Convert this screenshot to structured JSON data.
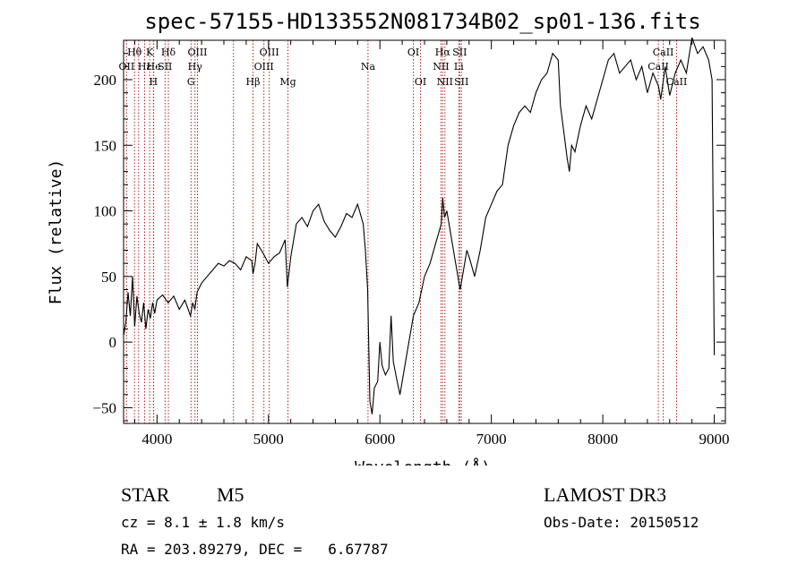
{
  "chart_data": {
    "type": "line",
    "title": "spec-57155-HD133552N081734B02_sp01-136.fits",
    "xlabel": "Wavelength (Å)",
    "ylabel": "Flux (relative)",
    "xlim": [
      3700,
      9100
    ],
    "ylim": [
      -62,
      230
    ],
    "x_ticks": [
      4000,
      5000,
      6000,
      7000,
      8000,
      9000
    ],
    "y_ticks": [
      -50,
      0,
      50,
      100,
      150,
      200
    ],
    "grid": false,
    "series": [
      {
        "x": [
          3700,
          3720,
          3740,
          3760,
          3780,
          3800,
          3820,
          3840,
          3860,
          3880,
          3900,
          3920,
          3940,
          3960,
          3980,
          4000,
          4050,
          4100,
          4150,
          4200,
          4250,
          4300,
          4320,
          4340,
          4360,
          4400,
          4450,
          4500,
          4550,
          4600,
          4650,
          4700,
          4750,
          4800,
          4850,
          4861,
          4880,
          4900,
          4950,
          5000,
          5050,
          5100,
          5150,
          5170,
          5200,
          5250,
          5300,
          5350,
          5400,
          5450,
          5500,
          5550,
          5600,
          5650,
          5700,
          5750,
          5800,
          5850,
          5870,
          5890,
          5910,
          5930,
          5950,
          5980,
          6000,
          6020,
          6050,
          6080,
          6100,
          6120,
          6150,
          6180,
          6200,
          6250,
          6300,
          6350,
          6400,
          6450,
          6500,
          6550,
          6563,
          6580,
          6600,
          6620,
          6650,
          6680,
          6700,
          6720,
          6750,
          6780,
          6800,
          6850,
          6900,
          6950,
          7000,
          7050,
          7100,
          7150,
          7200,
          7250,
          7300,
          7350,
          7400,
          7450,
          7500,
          7550,
          7600,
          7620,
          7650,
          7680,
          7700,
          7720,
          7750,
          7800,
          7850,
          7900,
          7950,
          8000,
          8050,
          8100,
          8150,
          8200,
          8250,
          8300,
          8350,
          8400,
          8450,
          8500,
          8520,
          8560,
          8600,
          8650,
          8700,
          8750,
          8800,
          8850,
          8900,
          8950,
          8980,
          9000
        ],
        "y": [
          5,
          15,
          38,
          20,
          50,
          12,
          35,
          22,
          15,
          30,
          10,
          25,
          18,
          30,
          22,
          32,
          36,
          30,
          35,
          25,
          32,
          20,
          30,
          25,
          38,
          45,
          50,
          55,
          60,
          58,
          62,
          60,
          55,
          65,
          62,
          52,
          60,
          75,
          68,
          60,
          65,
          68,
          78,
          42,
          65,
          90,
          95,
          88,
          100,
          105,
          92,
          85,
          80,
          88,
          98,
          95,
          105,
          90,
          70,
          40,
          -45,
          -55,
          -35,
          -30,
          0,
          -18,
          -25,
          -20,
          20,
          -15,
          -28,
          -40,
          -30,
          -5,
          20,
          30,
          50,
          60,
          75,
          90,
          110,
          95,
          100,
          90,
          75,
          60,
          50,
          40,
          55,
          70,
          65,
          50,
          70,
          95,
          105,
          115,
          120,
          150,
          165,
          175,
          180,
          175,
          190,
          200,
          205,
          220,
          215,
          180,
          160,
          140,
          130,
          150,
          145,
          165,
          180,
          170,
          185,
          200,
          215,
          220,
          205,
          210,
          215,
          200,
          210,
          190,
          205,
          195,
          185,
          210,
          188,
          205,
          215,
          205,
          232,
          220,
          225,
          215,
          200,
          -10
        ]
      }
    ],
    "spectral_lines": [
      {
        "label": "Hθ",
        "wavelength": 3798,
        "row": 0
      },
      {
        "label": "K",
        "wavelength": 3934,
        "row": 0
      },
      {
        "label": "Hδ",
        "wavelength": 4102,
        "row": 0
      },
      {
        "label": "OII",
        "wavelength": 3727,
        "row": 1
      },
      {
        "label": "Hε",
        "wavelength": 3889,
        "row": 1
      },
      {
        "label": "SII",
        "wavelength": 4072,
        "row": 1
      },
      {
        "label": "OIII",
        "wavelength": 4363,
        "row": 0
      },
      {
        "label": "Hγ",
        "wavelength": 4341,
        "row": 1
      },
      {
        "label": "G",
        "wavelength": 4305,
        "row": 2
      },
      {
        "label": "OIII",
        "wavelength": 5007,
        "row": 0
      },
      {
        "label": "OIII",
        "wavelength": 4959,
        "row": 1
      },
      {
        "label": "Hβ",
        "wavelength": 4861,
        "row": 2
      },
      {
        "label": "Mg",
        "wavelength": 5175,
        "row": 2
      },
      {
        "label": "Na",
        "wavelength": 5893,
        "row": 1
      },
      {
        "label": "OI",
        "wavelength": 6300,
        "row": 0
      },
      {
        "label": "OI",
        "wavelength": 6364,
        "row": 2
      },
      {
        "label": "Hα",
        "wavelength": 6563,
        "row": 0
      },
      {
        "label": "SII",
        "wavelength": 6716,
        "row": 0
      },
      {
        "label": "NII",
        "wavelength": 6548,
        "row": 1
      },
      {
        "label": "Li",
        "wavelength": 6708,
        "row": 1
      },
      {
        "label": "NII",
        "wavelength": 6583,
        "row": 2
      },
      {
        "label": "SII",
        "wavelength": 6731,
        "row": 2
      },
      {
        "label": "CaII",
        "wavelength": 8542,
        "row": 0
      },
      {
        "label": "CaII",
        "wavelength": 8498,
        "row": 1
      },
      {
        "label": "CaII",
        "wavelength": 8662,
        "row": 2
      },
      {
        "label": "",
        "wavelength": 3835,
        "row": 2
      },
      {
        "label": "He",
        "wavelength": 3970,
        "row": 1
      },
      {
        "label": "H",
        "wavelength": 3968,
        "row": 2
      },
      {
        "label": "",
        "wavelength": 4686,
        "row": 2
      }
    ]
  },
  "info": {
    "object_class": "STAR",
    "subclass": "M5",
    "survey": "LAMOST DR3",
    "cz": "cz = 8.1 ± 1.8 km/s",
    "obs_date": "Obs-Date: 20150512",
    "coords": "RA = 203.89279, DEC =   6.67787"
  },
  "colors": {
    "spectrum": "#000000",
    "line_markers": "#b22222"
  }
}
